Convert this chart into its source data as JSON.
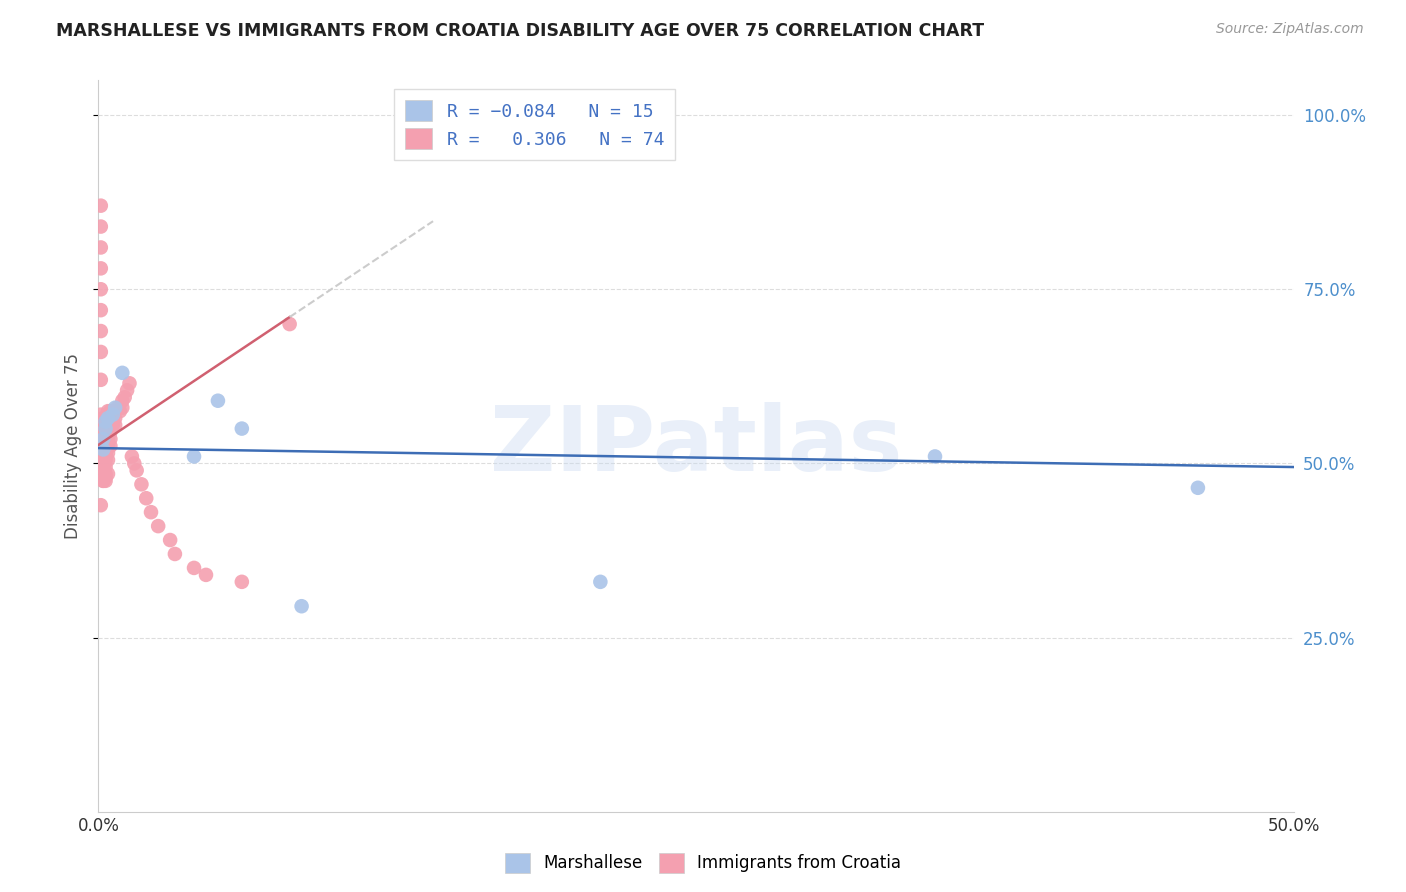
{
  "title": "MARSHALLESE VS IMMIGRANTS FROM CROATIA DISABILITY AGE OVER 75 CORRELATION CHART",
  "source": "Source: ZipAtlas.com",
  "ylabel": "Disability Age Over 75",
  "xlim": [
    0.0,
    0.5
  ],
  "ylim": [
    0.0,
    1.05
  ],
  "background_color": "#ffffff",
  "watermark": "ZIPatlas",
  "blue_R": -0.084,
  "blue_N": 15,
  "pink_R": 0.306,
  "pink_N": 74,
  "blue_color": "#aac4e8",
  "pink_color": "#f4a0b0",
  "blue_line_color": "#3d6db5",
  "pink_line_color": "#d06070",
  "dash_color": "#cccccc",
  "blue_x": [
    0.002,
    0.002,
    0.003,
    0.003,
    0.004,
    0.006,
    0.007,
    0.01,
    0.04,
    0.05,
    0.06,
    0.085,
    0.21,
    0.35,
    0.46
  ],
  "blue_y": [
    0.52,
    0.535,
    0.55,
    0.56,
    0.565,
    0.57,
    0.58,
    0.63,
    0.51,
    0.59,
    0.55,
    0.295,
    0.33,
    0.51,
    0.465
  ],
  "pink_x": [
    0.001,
    0.001,
    0.001,
    0.001,
    0.001,
    0.001,
    0.001,
    0.001,
    0.001,
    0.001,
    0.002,
    0.002,
    0.002,
    0.002,
    0.002,
    0.002,
    0.002,
    0.002,
    0.002,
    0.002,
    0.003,
    0.003,
    0.003,
    0.003,
    0.003,
    0.003,
    0.003,
    0.003,
    0.003,
    0.003,
    0.004,
    0.004,
    0.004,
    0.004,
    0.004,
    0.004,
    0.004,
    0.004,
    0.005,
    0.005,
    0.005,
    0.005,
    0.005,
    0.005,
    0.006,
    0.006,
    0.006,
    0.007,
    0.007,
    0.007,
    0.008,
    0.009,
    0.01,
    0.01,
    0.011,
    0.012,
    0.013,
    0.014,
    0.015,
    0.016,
    0.018,
    0.02,
    0.022,
    0.025,
    0.03,
    0.032,
    0.04,
    0.045,
    0.06,
    0.08,
    0.001,
    0.002,
    0.003,
    0.004
  ],
  "pink_y": [
    0.87,
    0.84,
    0.81,
    0.78,
    0.75,
    0.72,
    0.69,
    0.66,
    0.62,
    0.57,
    0.565,
    0.555,
    0.545,
    0.535,
    0.525,
    0.515,
    0.505,
    0.495,
    0.485,
    0.475,
    0.565,
    0.555,
    0.545,
    0.535,
    0.525,
    0.515,
    0.505,
    0.495,
    0.485,
    0.475,
    0.575,
    0.565,
    0.555,
    0.545,
    0.535,
    0.525,
    0.515,
    0.505,
    0.575,
    0.565,
    0.555,
    0.545,
    0.535,
    0.525,
    0.575,
    0.565,
    0.555,
    0.575,
    0.565,
    0.555,
    0.58,
    0.575,
    0.59,
    0.58,
    0.595,
    0.605,
    0.615,
    0.51,
    0.5,
    0.49,
    0.47,
    0.45,
    0.43,
    0.41,
    0.39,
    0.37,
    0.35,
    0.34,
    0.33,
    0.7,
    0.44,
    0.475,
    0.48,
    0.485
  ],
  "pink_line_x0": 0.0,
  "pink_line_x1": 0.08,
  "dash_line_x0": 0.08,
  "dash_line_x1": 0.14
}
